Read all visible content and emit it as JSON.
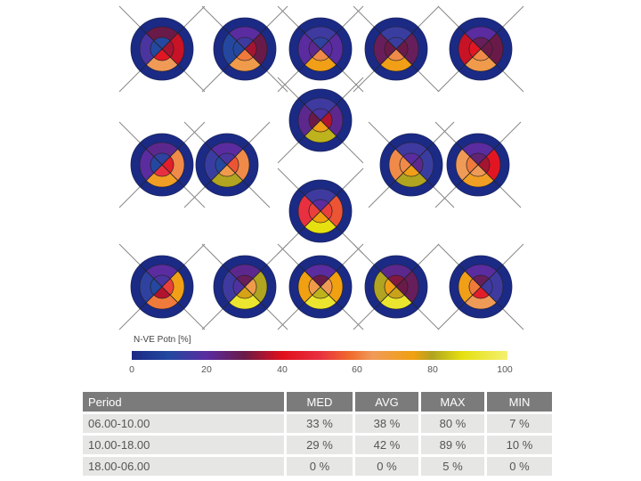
{
  "chart_data": {
    "type": "polar-sector-heatmap",
    "sector_order": [
      "top",
      "right",
      "bottom",
      "left"
    ],
    "outer_ring_value": 0,
    "diagrams": [
      {
        "row": 1,
        "col": 1,
        "middle": [
          30,
          38,
          64,
          17
        ],
        "inner": [
          10,
          35,
          42,
          10
        ]
      },
      {
        "row": 1,
        "col": 2,
        "middle": [
          20,
          30,
          66,
          10
        ],
        "inner": [
          15,
          35,
          60,
          10
        ]
      },
      {
        "row": 1,
        "col": 3,
        "middle": [
          15,
          20,
          74,
          20
        ],
        "inner": [
          12,
          20,
          62,
          22
        ]
      },
      {
        "row": 1,
        "col": 4,
        "middle": [
          14,
          28,
          74,
          28
        ],
        "inner": [
          14,
          30,
          62,
          30
        ]
      },
      {
        "row": 1,
        "col": 5,
        "middle": [
          20,
          30,
          66,
          38
        ],
        "inner": [
          28,
          30,
          62,
          42
        ]
      },
      {
        "row": 2,
        "col": "center-top",
        "middle": [
          15,
          22,
          82,
          22
        ],
        "inner": [
          17,
          36,
          74,
          30
        ]
      },
      {
        "row": 2,
        "col": 1,
        "middle": [
          22,
          62,
          72,
          20
        ],
        "inner": [
          12,
          44,
          50,
          10
        ]
      },
      {
        "row": 2,
        "col": 2,
        "middle": [
          20,
          62,
          80,
          14
        ],
        "inner": [
          17,
          55,
          66,
          10
        ]
      },
      {
        "row": 2,
        "col": 4,
        "middle": [
          15,
          14,
          80,
          62
        ],
        "inner": [
          20,
          22,
          74,
          62
        ]
      },
      {
        "row": 2,
        "col": 5,
        "middle": [
          20,
          42,
          72,
          64
        ],
        "inner": [
          25,
          35,
          64,
          60
        ]
      },
      {
        "row": 2,
        "col": "center-bottom",
        "middle": [
          15,
          55,
          88,
          50
        ],
        "inner": [
          20,
          52,
          75,
          52
        ]
      },
      {
        "row": 3,
        "col": 1,
        "middle": [
          20,
          74,
          60,
          12
        ],
        "inner": [
          17,
          52,
          36,
          10
        ]
      },
      {
        "row": 3,
        "col": 2,
        "middle": [
          22,
          80,
          92,
          15
        ],
        "inner": [
          28,
          66,
          77,
          18
        ]
      },
      {
        "row": 3,
        "col": 3,
        "middle": [
          20,
          75,
          92,
          75
        ],
        "inner": [
          30,
          64,
          82,
          66
        ]
      },
      {
        "row": 3,
        "col": 4,
        "middle": [
          22,
          28,
          92,
          80
        ],
        "inner": [
          32,
          30,
          78,
          74
        ]
      },
      {
        "row": 3,
        "col": 5,
        "middle": [
          20,
          15,
          64,
          74
        ],
        "inner": [
          28,
          15,
          44,
          60
        ]
      }
    ],
    "colorbar": {
      "title": "N-VE Potn [%]",
      "range": [
        0,
        100
      ],
      "ticks": [
        "0",
        "20",
        "40",
        "60",
        "80",
        "100"
      ],
      "colors": [
        "#1b2a84",
        "#2448a0",
        "#5a2ca0",
        "#6a1a48",
        "#e0101c",
        "#e83040",
        "#f06a2c",
        "#f09a58",
        "#f0a010",
        "#b0a420",
        "#e6e010",
        "#f4f070"
      ]
    },
    "table": {
      "headers": [
        "Period",
        "MED",
        "AVG",
        "MAX",
        "MIN"
      ],
      "rows": [
        [
          "06.00-10.00",
          "33 %",
          "38 %",
          "80 %",
          "7 %"
        ],
        [
          "10.00-18.00",
          "29 %",
          "42 %",
          "89 %",
          "10 %"
        ],
        [
          "18.00-06.00",
          "0 %",
          "0 %",
          "5 %",
          "0 %"
        ]
      ]
    }
  }
}
